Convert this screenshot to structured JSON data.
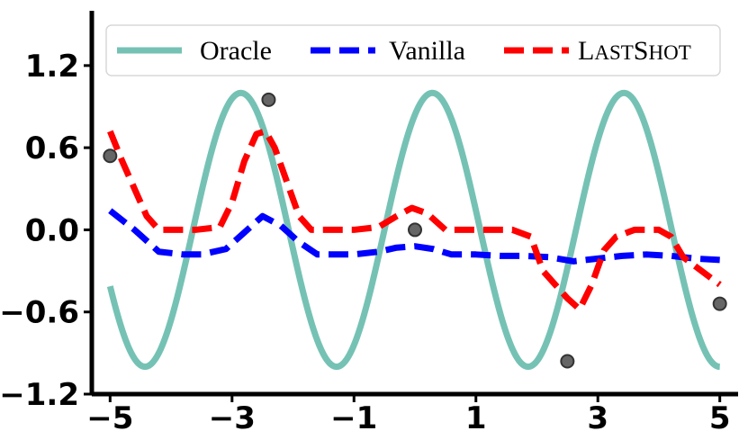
{
  "chart_data": {
    "type": "line",
    "xlim": [
      -5.3,
      5.3
    ],
    "ylim": [
      -1.2,
      1.6
    ],
    "x_ticks": [
      -5,
      -3,
      -1,
      1,
      3,
      5
    ],
    "x_tick_labels": [
      "−5",
      "−3",
      "−1",
      "1",
      "3",
      "5"
    ],
    "y_ticks": [
      -1.2,
      -0.6,
      0.0,
      0.6,
      1.2
    ],
    "y_tick_labels": [
      "−1.2",
      "−0.6",
      "0.0",
      "0.6",
      "1.2"
    ],
    "grid": false,
    "legend_position": "top",
    "series": [
      {
        "name": "Oracle",
        "style": "solid",
        "color": "#75c2b5",
        "function": "sine",
        "amplitude": 1.0,
        "frequency": 2.0,
        "phase": 1.0,
        "x_range": [
          -5,
          5
        ]
      },
      {
        "name": "Vanilla",
        "style": "dashed",
        "color": "#0000ff",
        "x": [
          -5.0,
          -4.6,
          -4.2,
          -3.8,
          -3.5,
          -3.1,
          -2.8,
          -2.5,
          -2.2,
          -1.9,
          -1.6,
          -1.3,
          -1.0,
          -0.6,
          -0.3,
          0.0,
          0.3,
          0.6,
          1.0,
          1.4,
          1.8,
          2.2,
          2.6,
          3.0,
          3.4,
          3.8,
          4.2,
          4.6,
          5.0
        ],
        "y": [
          0.14,
          0.0,
          -0.16,
          -0.18,
          -0.18,
          -0.14,
          -0.02,
          0.1,
          0.03,
          -0.09,
          -0.18,
          -0.18,
          -0.18,
          -0.16,
          -0.13,
          -0.12,
          -0.14,
          -0.18,
          -0.18,
          -0.19,
          -0.19,
          -0.2,
          -0.23,
          -0.21,
          -0.19,
          -0.18,
          -0.19,
          -0.21,
          -0.22
        ]
      },
      {
        "name": "LastShot",
        "display_name_parts": [
          "L",
          "AST",
          "S",
          "HOT"
        ],
        "style": "dashed",
        "color": "#ff0000",
        "x": [
          -5.0,
          -4.8,
          -4.6,
          -4.4,
          -4.2,
          -4.0,
          -3.6,
          -3.2,
          -3.0,
          -2.8,
          -2.6,
          -2.45,
          -2.3,
          -2.1,
          -1.9,
          -1.7,
          -1.4,
          -1.0,
          -0.6,
          -0.3,
          -0.05,
          0.2,
          0.5,
          0.8,
          1.2,
          1.6,
          1.9,
          2.1,
          2.3,
          2.5,
          2.7,
          2.9,
          3.1,
          3.3,
          3.6,
          4.0,
          4.2,
          4.4,
          4.7,
          5.0
        ],
        "y": [
          0.72,
          0.5,
          0.3,
          0.1,
          0.0,
          0.0,
          0.0,
          0.02,
          0.2,
          0.5,
          0.7,
          0.72,
          0.6,
          0.35,
          0.1,
          0.0,
          0.0,
          0.0,
          0.02,
          0.1,
          0.16,
          0.12,
          0.0,
          0.0,
          0.0,
          0.0,
          -0.05,
          -0.3,
          -0.4,
          -0.5,
          -0.58,
          -0.4,
          -0.15,
          -0.05,
          0.0,
          0.0,
          -0.05,
          -0.2,
          -0.3,
          -0.4
        ]
      }
    ],
    "points": [
      {
        "x": -5.0,
        "y": 0.54
      },
      {
        "x": -2.4,
        "y": 0.95
      },
      {
        "x": 0.0,
        "y": 0.0
      },
      {
        "x": 2.5,
        "y": -0.96
      },
      {
        "x": 5.0,
        "y": -0.54
      }
    ]
  }
}
